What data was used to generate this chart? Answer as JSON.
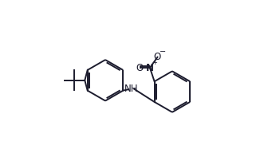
{
  "background": "#ffffff",
  "line_color": "#1c1c2e",
  "line_width": 1.4,
  "dbo": 0.012,
  "font_size": 8.5,
  "figsize": [
    3.46,
    1.92
  ],
  "dpi": 100,
  "xlim": [
    0.0,
    1.0
  ],
  "ylim": [
    0.0,
    1.0
  ]
}
